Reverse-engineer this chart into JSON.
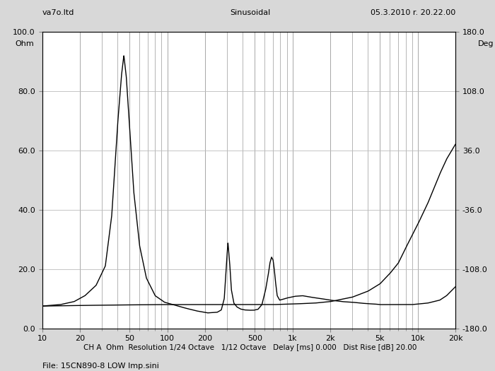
{
  "title_left": "va7o.ltd",
  "title_center": "Sinusoidal",
  "title_right": "05.3.2010 r. 20.22.00",
  "ylabel_left": "Ohm",
  "ylabel_right": "Deg",
  "xlabel_bottom": "CH A  Ohm  Resolution 1/24 Octave   1/12 Octave   Delay [ms] 0.000   Dist Rise [dB] 20.00",
  "file_label": "File: 15CN890-8 LOW Imp.sini",
  "ylim_left": [
    0.0,
    100.0
  ],
  "ylim_right": [
    -180.0,
    180.0
  ],
  "xlim": [
    10,
    20000
  ],
  "yticks_left": [
    0.0,
    20.0,
    40.0,
    60.0,
    80.0,
    100.0
  ],
  "yticks_right": [
    -180.0,
    -108.0,
    -36.0,
    36.0,
    108.0,
    180.0
  ],
  "xtick_labels": [
    "10",
    "20",
    "50",
    "100",
    "200",
    "500",
    "1k",
    "2k",
    "5k",
    "10k",
    "20k"
  ],
  "xtick_vals": [
    10,
    20,
    50,
    100,
    200,
    500,
    1000,
    2000,
    5000,
    10000,
    20000
  ],
  "background_color": "#d8d8d8",
  "plot_bg_color": "#ffffff",
  "line_color": "#000000",
  "grid_color": "#999999",
  "hgrid_color": "#bbbbbb",
  "imp_curve": {
    "freq": [
      10,
      14,
      18,
      22,
      27,
      32,
      36,
      40,
      43,
      45,
      47,
      50,
      54,
      60,
      68,
      80,
      95,
      115,
      140,
      170,
      210,
      250,
      270,
      285,
      295,
      305,
      315,
      325,
      340,
      360,
      385,
      415,
      450,
      490,
      530,
      570,
      610,
      640,
      660,
      680,
      700,
      715,
      730,
      755,
      790,
      840,
      900,
      970,
      1050,
      1200,
      1400,
      1700,
      2000,
      2500,
      3000,
      3500,
      4000,
      4500,
      5000,
      5500,
      6000,
      7000,
      8000,
      9000,
      10000,
      12000,
      15000,
      17000,
      20000
    ],
    "ohm": [
      7.5,
      8.0,
      9.0,
      11.0,
      14.5,
      21,
      38,
      68,
      85,
      92,
      85,
      68,
      46,
      28,
      17,
      11,
      8.8,
      7.8,
      6.8,
      5.9,
      5.2,
      5.4,
      6.2,
      10,
      20,
      29,
      22,
      13,
      8.5,
      7.2,
      6.5,
      6.2,
      6.1,
      6.1,
      6.4,
      8.0,
      13,
      18,
      22,
      24,
      23,
      20,
      16,
      11,
      9.5,
      9.8,
      10.2,
      10.5,
      10.8,
      11,
      10.5,
      10,
      9.5,
      9.0,
      8.8,
      8.5,
      8.3,
      8.2,
      8.0,
      8.0,
      8.0,
      8.0,
      8.0,
      8.0,
      8.2,
      8.5,
      9.5,
      11,
      14
    ]
  },
  "smooth_curve": {
    "freq": [
      10,
      15,
      20,
      30,
      50,
      80,
      100,
      150,
      200,
      300,
      500,
      700,
      1000,
      1500,
      2000,
      3000,
      4000,
      5000,
      6000,
      7000,
      8000,
      10000,
      12000,
      15000,
      17000,
      20000
    ],
    "ohm": [
      7.5,
      7.6,
      7.7,
      7.8,
      7.9,
      8.0,
      8.0,
      8.0,
      8.0,
      8.0,
      8.0,
      8.0,
      8.2,
      8.5,
      9.0,
      10.5,
      12.5,
      15,
      18.5,
      22,
      27,
      35,
      42,
      52,
      57,
      62
    ]
  }
}
